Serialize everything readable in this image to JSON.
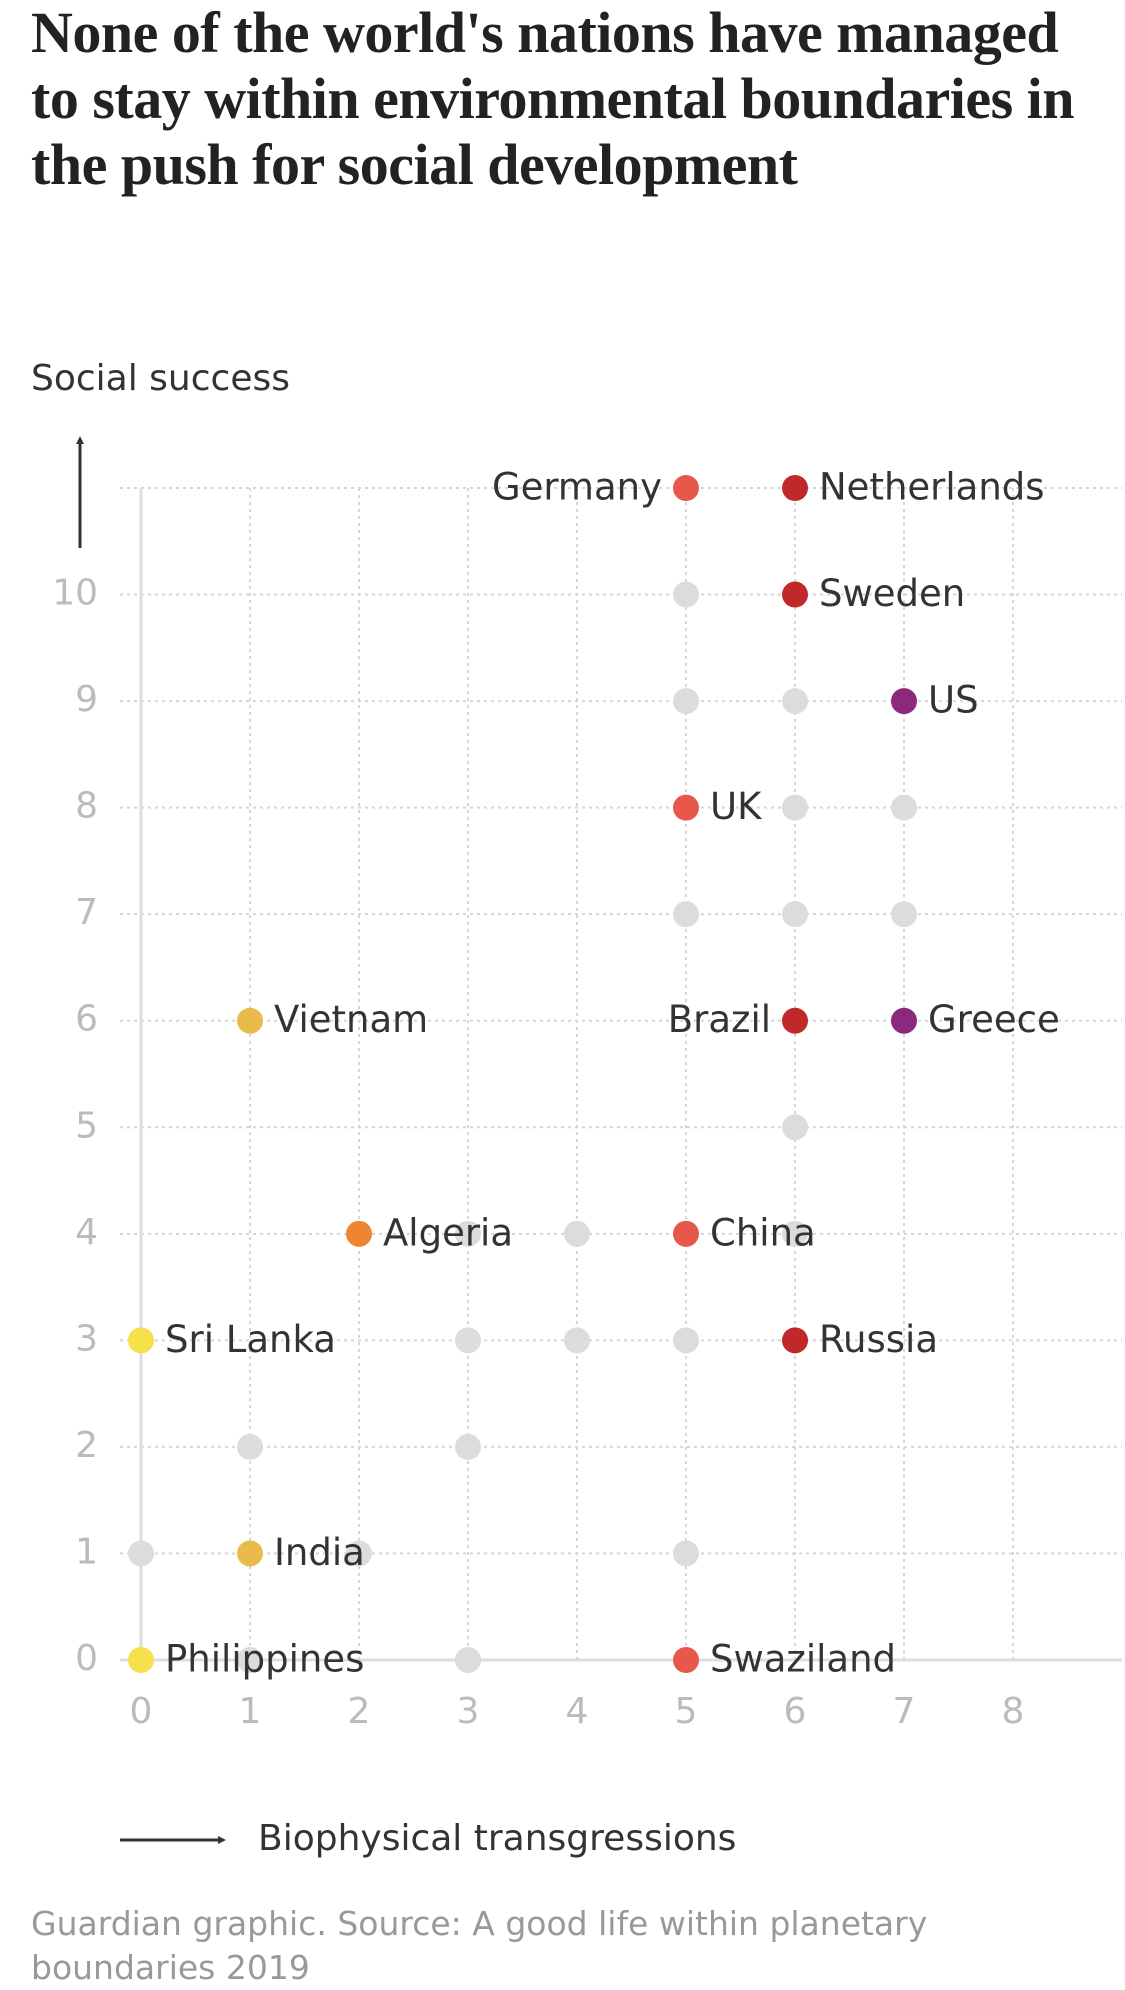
{
  "chart_data": {
    "type": "scatter",
    "title": "None of the world's nations have managed to stay within environmental boundaries in the push for social development",
    "ylabel": "Social success",
    "xlabel": "Biophysical transgressions",
    "source": "Guardian graphic. Source: A good life within planetary boundaries 2019",
    "xlim": [
      0,
      9
    ],
    "ylim": [
      0,
      11
    ],
    "xticks": [
      0,
      1,
      2,
      3,
      4,
      5,
      6,
      7,
      8
    ],
    "yticks": [
      0,
      1,
      2,
      3,
      4,
      5,
      6,
      7,
      8,
      9,
      10
    ],
    "grid": true,
    "points": [
      {
        "x": 5,
        "y": 11,
        "label": "Germany",
        "color": "#e8584a"
      },
      {
        "x": 6,
        "y": 11,
        "label": "Netherlands",
        "color": "#c0282a"
      },
      {
        "x": 6,
        "y": 10,
        "label": "Sweden",
        "color": "#c0282a"
      },
      {
        "x": 7,
        "y": 9,
        "label": "US",
        "color": "#8b2a7d"
      },
      {
        "x": 5,
        "y": 8,
        "label": "UK",
        "color": "#e8584a"
      },
      {
        "x": 1,
        "y": 6,
        "label": "Vietnam",
        "color": "#e9bb4a"
      },
      {
        "x": 6,
        "y": 6,
        "label": "Brazil",
        "color": "#c0282a"
      },
      {
        "x": 7,
        "y": 6,
        "label": "Greece",
        "color": "#8b2a7d"
      },
      {
        "x": 2,
        "y": 4,
        "label": "Algeria",
        "color": "#ee8631"
      },
      {
        "x": 5,
        "y": 4,
        "label": "China",
        "color": "#e8584a"
      },
      {
        "x": 0,
        "y": 3,
        "label": "Sri Lanka",
        "color": "#f7e14b"
      },
      {
        "x": 6,
        "y": 3,
        "label": "Russia",
        "color": "#c0282a"
      },
      {
        "x": 1,
        "y": 1,
        "label": "India",
        "color": "#e9bb4a"
      },
      {
        "x": 0,
        "y": 0,
        "label": "Philippines",
        "color": "#f7e14b"
      },
      {
        "x": 5,
        "y": 0,
        "label": "Swaziland",
        "color": "#e8584a"
      },
      {
        "x": 5,
        "y": 10,
        "color": "#dcdcdc"
      },
      {
        "x": 5,
        "y": 9,
        "color": "#dcdcdc"
      },
      {
        "x": 6,
        "y": 9,
        "color": "#dcdcdc"
      },
      {
        "x": 6,
        "y": 8,
        "color": "#dcdcdc"
      },
      {
        "x": 7,
        "y": 8,
        "color": "#dcdcdc"
      },
      {
        "x": 5,
        "y": 7,
        "color": "#dcdcdc"
      },
      {
        "x": 6,
        "y": 7,
        "color": "#dcdcdc"
      },
      {
        "x": 7,
        "y": 7,
        "color": "#dcdcdc"
      },
      {
        "x": 6,
        "y": 5,
        "color": "#dcdcdc"
      },
      {
        "x": 3,
        "y": 4,
        "color": "#dcdcdc"
      },
      {
        "x": 4,
        "y": 4,
        "color": "#dcdcdc"
      },
      {
        "x": 6,
        "y": 4,
        "color": "#dcdcdc"
      },
      {
        "x": 3,
        "y": 3,
        "color": "#dcdcdc"
      },
      {
        "x": 4,
        "y": 3,
        "color": "#dcdcdc"
      },
      {
        "x": 5,
        "y": 3,
        "color": "#dcdcdc"
      },
      {
        "x": 1,
        "y": 2,
        "color": "#dcdcdc"
      },
      {
        "x": 3,
        "y": 2,
        "color": "#dcdcdc"
      },
      {
        "x": 0,
        "y": 1,
        "color": "#dcdcdc"
      },
      {
        "x": 2,
        "y": 1,
        "color": "#dcdcdc"
      },
      {
        "x": 5,
        "y": 1,
        "color": "#dcdcdc"
      },
      {
        "x": 1,
        "y": 0,
        "color": "#dcdcdc"
      },
      {
        "x": 3,
        "y": 0,
        "color": "#dcdcdc"
      }
    ]
  }
}
